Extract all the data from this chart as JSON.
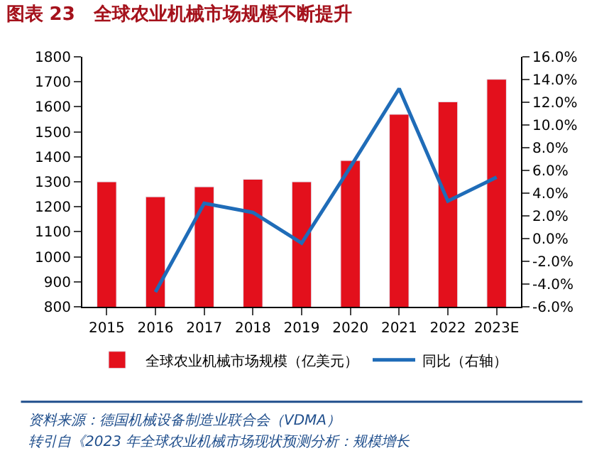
{
  "chart_data": {
    "type": "bar",
    "title": "图表 23　全球农业机械市场规模不断提升",
    "categories": [
      "2015",
      "2016",
      "2017",
      "2018",
      "2019",
      "2020",
      "2021",
      "2022",
      "2023E"
    ],
    "series": [
      {
        "name": "全球农业机械市场规模（亿美元）",
        "color": "#e3101c",
        "values": [
          1300,
          1240,
          1280,
          1310,
          1300,
          1385,
          1570,
          1620,
          1710
        ]
      },
      {
        "name": "同比（右轴）",
        "type": "line",
        "axis": "y2",
        "color": "#1f6cb8",
        "values": [
          null,
          -4.7,
          3.1,
          2.3,
          -0.4,
          6.3,
          13.2,
          3.3,
          5.4
        ]
      }
    ],
    "ylim": [
      800,
      1800
    ],
    "yticks": [
      800,
      900,
      1000,
      1100,
      1200,
      1300,
      1400,
      1500,
      1600,
      1700,
      1800
    ],
    "y2lim": [
      -6,
      16
    ],
    "y2ticks": [
      {
        "value": -6,
        "label": "-6.0%"
      },
      {
        "value": -4,
        "label": "-4.0%"
      },
      {
        "value": -2,
        "label": "-2.0%"
      },
      {
        "value": 0,
        "label": "0.0%"
      },
      {
        "value": 2,
        "label": "2.0%"
      },
      {
        "value": 4,
        "label": "4.0%"
      },
      {
        "value": 6,
        "label": "6.0%"
      },
      {
        "value": 8,
        "label": "8.0%"
      },
      {
        "value": 10,
        "label": "10.0%"
      },
      {
        "value": 12,
        "label": "12.0%"
      },
      {
        "value": 14,
        "label": "14.0%"
      },
      {
        "value": 16,
        "label": "16.0%"
      }
    ],
    "legend": "bottom",
    "marker": "none",
    "line_style": "solid",
    "annotations": [
      "资料来源：德国机械设备制造业联合会（VDMA）",
      "转引自《2023 年全球农业机械市场现状预测分析：规模增长"
    ]
  }
}
